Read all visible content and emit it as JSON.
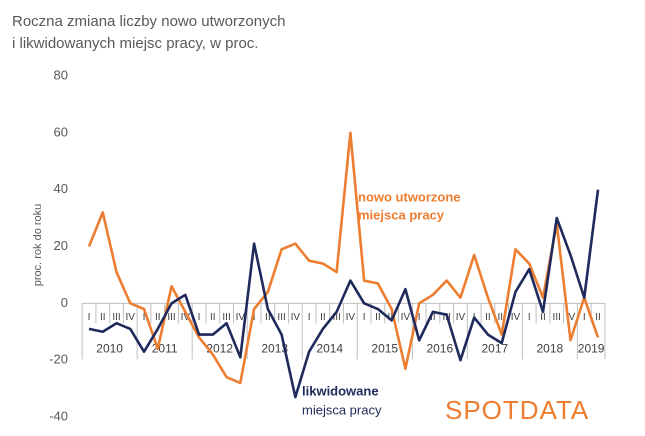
{
  "chart_data": {
    "type": "line",
    "title": [
      "Roczna zmiana liczby nowo utworzonych",
      "i likwidowanych miejsc pracy, w proc."
    ],
    "y_axis_label": "proc. rok do roku",
    "categories": [
      "I",
      "II",
      "III",
      "IV",
      "I",
      "II",
      "III",
      "IV",
      "I",
      "II",
      "III",
      "IV",
      "I",
      "II",
      "III",
      "IV",
      "I",
      "II",
      "III",
      "IV",
      "I",
      "II",
      "III",
      "IV",
      "I",
      "II",
      "III",
      "IV",
      "I",
      "II",
      "III",
      "IV",
      "I",
      "II",
      "III",
      "IV",
      "I",
      "II"
    ],
    "years": [
      "2010",
      "2011",
      "2012",
      "2013",
      "2014",
      "2015",
      "2016",
      "2017",
      "2018",
      "2019"
    ],
    "series": [
      {
        "name": [
          "nowo utworzone",
          "miejsca pracy"
        ],
        "color": "#ED7D31",
        "values": [
          20,
          32,
          11,
          0,
          -2,
          -16,
          6,
          -3,
          -12,
          -18,
          -26,
          -28,
          -2,
          4,
          19,
          21,
          15,
          14,
          11,
          60,
          8,
          7,
          -2,
          -23,
          0,
          3,
          8,
          2,
          17,
          2,
          -11,
          19,
          14,
          2,
          28,
          -13,
          2,
          -12
        ]
      },
      {
        "name": [
          "likwidowane",
          "miejsca pracy"
        ],
        "color": "#1F2A5C",
        "values": [
          -9,
          -10,
          -7,
          -9,
          -17,
          -9,
          0,
          3,
          -11,
          -11,
          -7,
          -19,
          21,
          -2,
          -11,
          -33,
          -17,
          -9,
          -3,
          8,
          0,
          -2,
          -6,
          5,
          -13,
          -3,
          -4,
          -20,
          -5,
          -11,
          -14,
          4,
          12,
          -3,
          30,
          17,
          2,
          40
        ]
      }
    ],
    "ylim": [
      -40,
      80
    ],
    "yticks": [
      -40,
      -20,
      0,
      20,
      40,
      60,
      80
    ],
    "grid": false,
    "logo": "SPOTDATA"
  }
}
